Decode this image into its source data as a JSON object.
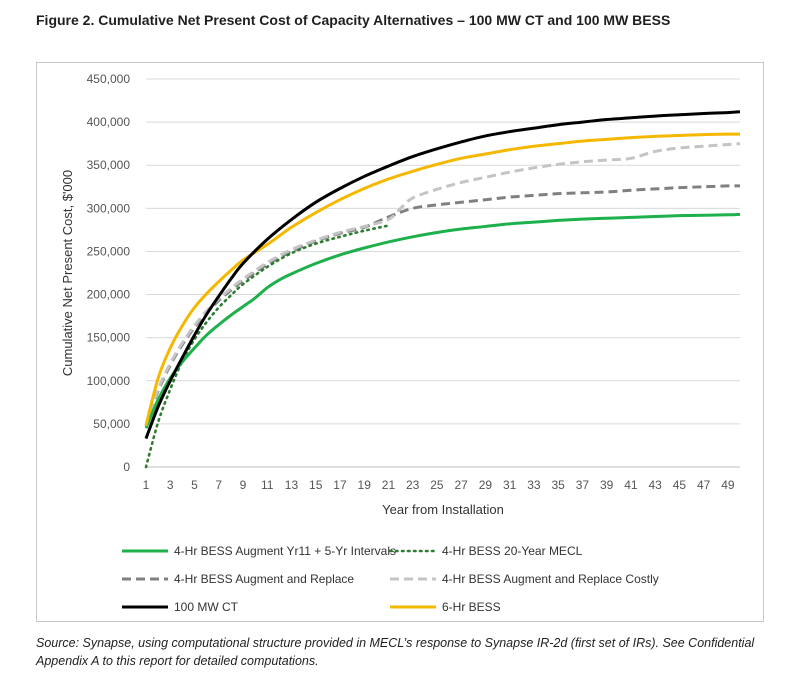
{
  "figure_title": "Figure 2. Cumulative Net Present Cost of Capacity Alternatives – 100 MW CT and 100 MW BESS",
  "source_note": "Source: Synapse, using computational structure provided in MECL’s response to Synapse IR-2d (first set of IRs). See Confidential Appendix A to this report for detailed computations.",
  "chart_data": {
    "type": "line",
    "xlabel": "Year from Installation",
    "ylabel": "Cumulative Net Present Cost, $'000",
    "xlim": [
      1,
      50
    ],
    "ylim": [
      0,
      450000
    ],
    "x_ticks": [
      1,
      3,
      5,
      7,
      9,
      11,
      13,
      15,
      17,
      19,
      21,
      23,
      25,
      27,
      29,
      31,
      33,
      35,
      37,
      39,
      41,
      43,
      45,
      47,
      49
    ],
    "y_ticks": [
      0,
      50000,
      100000,
      150000,
      200000,
      250000,
      300000,
      350000,
      400000,
      450000
    ],
    "y_tick_labels": [
      "0",
      "50,000",
      "100,000",
      "150,000",
      "200,000",
      "250,000",
      "300,000",
      "350,000",
      "400,000",
      "450,000"
    ],
    "grid": "horizontal",
    "legend_position": "bottom",
    "series": [
      {
        "name": "4-Hr BESS Augment Yr11 + 5-Yr Intervals",
        "color": "#1db04b",
        "dash": "solid",
        "x": [
          1,
          2,
          3,
          4,
          5,
          6,
          7,
          8,
          9,
          10,
          11,
          12,
          13,
          15,
          17,
          19,
          21,
          23,
          25,
          27,
          29,
          31,
          33,
          35,
          37,
          39,
          41,
          43,
          45,
          47,
          49,
          50
        ],
        "y": [
          45000,
          78000,
          103000,
          122000,
          138000,
          153000,
          165000,
          176000,
          186000,
          196000,
          208000,
          217000,
          224000,
          236000,
          246000,
          254000,
          261000,
          267000,
          272000,
          276000,
          279000,
          282000,
          284000,
          286000,
          287500,
          288500,
          289500,
          290500,
          291500,
          292000,
          292500,
          293000
        ]
      },
      {
        "name": "4-Hr BESS 20-Year MECL",
        "color": "#2e7d32",
        "dash": "dotted",
        "x": [
          1,
          2,
          3,
          4,
          5,
          6,
          7,
          8,
          9,
          11,
          13,
          15,
          17,
          19,
          21
        ],
        "y": [
          0,
          52000,
          90000,
          123000,
          148000,
          168000,
          185000,
          199000,
          212000,
          232000,
          248000,
          259000,
          267000,
          274000,
          280000
        ]
      },
      {
        "name": "4-Hr BESS Augment and Replace",
        "color": "#808080",
        "dash": "dashed",
        "x": [
          1,
          2,
          3,
          4,
          5,
          6,
          7,
          8,
          9,
          11,
          13,
          15,
          17,
          19,
          21,
          23,
          25,
          27,
          29,
          31,
          33,
          35,
          37,
          39,
          41,
          43,
          45,
          47,
          49,
          50
        ],
        "y": [
          48000,
          88000,
          118000,
          142000,
          162000,
          179000,
          193000,
          205000,
          216000,
          235000,
          250000,
          262000,
          271000,
          278000,
          290000,
          300000,
          304000,
          307000,
          310000,
          313000,
          315000,
          317000,
          318000,
          319000,
          321000,
          322500,
          324000,
          325000,
          326000,
          326000
        ]
      },
      {
        "name": "4-Hr BESS Augment and Replace Costly",
        "color": "#c4c4c4",
        "dash": "dashed",
        "x": [
          1,
          2,
          3,
          4,
          5,
          6,
          7,
          8,
          9,
          11,
          13,
          15,
          17,
          19,
          21,
          22,
          23,
          25,
          27,
          29,
          31,
          33,
          35,
          37,
          39,
          41,
          43,
          45,
          47,
          49,
          50
        ],
        "y": [
          48000,
          90000,
          120000,
          144000,
          164000,
          181000,
          195000,
          207000,
          218000,
          237000,
          252000,
          263000,
          272000,
          279000,
          287000,
          300000,
          312000,
          322000,
          330000,
          336000,
          342000,
          347000,
          351000,
          354000,
          356000,
          358000,
          366000,
          370000,
          372000,
          374000,
          375000
        ]
      },
      {
        "name": "100 MW CT",
        "color": "#000000",
        "dash": "solid",
        "x": [
          1,
          2,
          3,
          4,
          5,
          6,
          7,
          8,
          9,
          11,
          13,
          15,
          17,
          19,
          21,
          23,
          25,
          27,
          29,
          31,
          33,
          35,
          37,
          39,
          41,
          43,
          45,
          47,
          49,
          50
        ],
        "y": [
          33000,
          70000,
          100000,
          127000,
          153000,
          177000,
          198000,
          218000,
          236000,
          264000,
          287000,
          307000,
          323000,
          337000,
          349000,
          360000,
          369000,
          377000,
          384000,
          389000,
          393000,
          397000,
          400000,
          403000,
          405000,
          407000,
          408500,
          410000,
          411000,
          412000
        ]
      },
      {
        "name": "6-Hr BESS",
        "color": "#f5b800",
        "dash": "solid",
        "x": [
          1,
          2,
          3,
          4,
          5,
          6,
          7,
          8,
          9,
          11,
          13,
          15,
          17,
          19,
          21,
          23,
          25,
          27,
          29,
          31,
          33,
          35,
          37,
          39,
          41,
          43,
          45,
          47,
          49,
          50
        ],
        "y": [
          48000,
          103000,
          138000,
          164000,
          185000,
          201000,
          215000,
          228000,
          240000,
          258000,
          278000,
          295000,
          310000,
          323000,
          334000,
          343000,
          351000,
          358000,
          363000,
          368000,
          372000,
          375000,
          378000,
          380000,
          382000,
          383500,
          384500,
          385500,
          386000,
          386000
        ]
      }
    ]
  }
}
